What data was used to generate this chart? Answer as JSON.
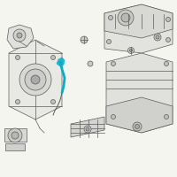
{
  "bg_color": "#f5f5f0",
  "line_color": "#5a5a5a",
  "highlight_color": "#00b0c8",
  "lw": 0.5,
  "highlight_lw": 1.5,
  "fig_size": [
    2.0,
    2.0
  ],
  "dpi": 100
}
